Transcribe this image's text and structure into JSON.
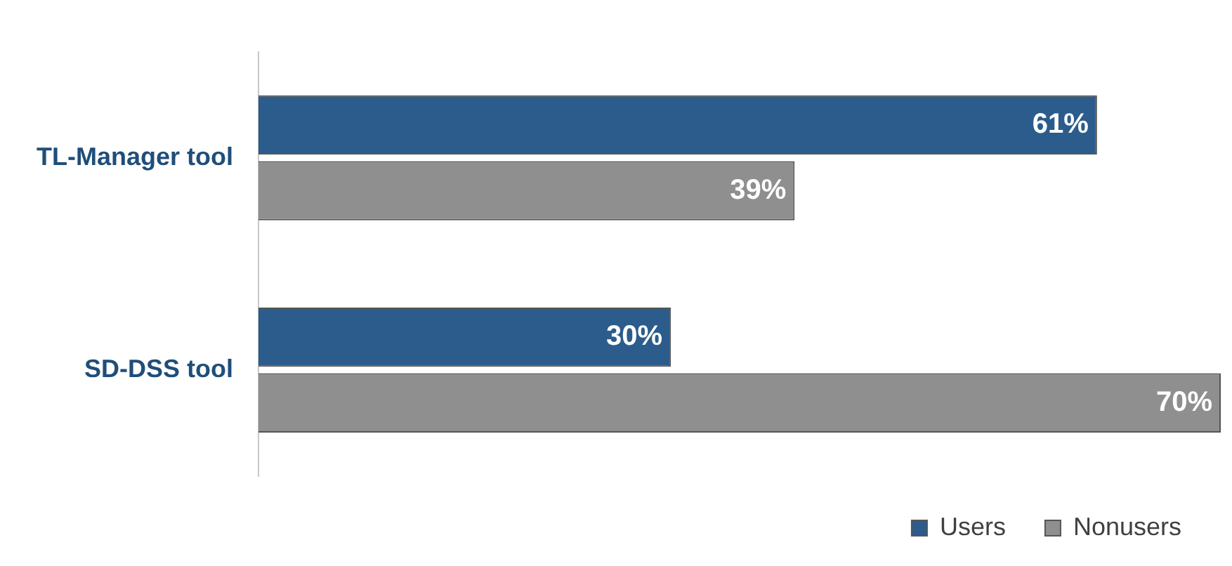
{
  "chart_data": {
    "type": "bar",
    "orientation": "horizontal",
    "categories": [
      "TL-Manager tool",
      "SD-DSS tool"
    ],
    "series": [
      {
        "name": "Users",
        "color": "#2b5c8c",
        "values": [
          61,
          30
        ],
        "value_labels": [
          "61%",
          "30%"
        ]
      },
      {
        "name": "Nonusers",
        "color": "#8f8f8f",
        "values": [
          39,
          70
        ],
        "value_labels": [
          "39%",
          "70%"
        ]
      }
    ],
    "grid": false,
    "legend": "bottom right"
  }
}
